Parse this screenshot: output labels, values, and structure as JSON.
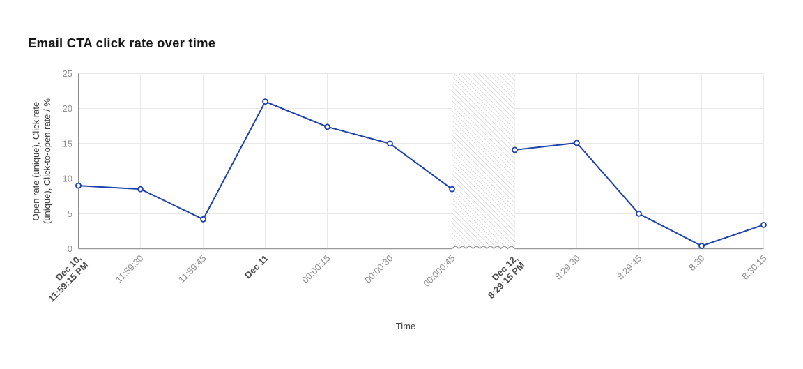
{
  "page_title": "Email CTA click rate over time",
  "chart_data": {
    "type": "line",
    "title": "Email CTA click rate over time",
    "xlabel": "Time",
    "ylabel": "Open rate (unique), Click rate (unique), Click-to-open rate / %",
    "ylabel_lines": [
      "Open rate (unique), Click rate",
      "(unique), Click-to-open rate / %"
    ],
    "ylim": [
      0,
      25
    ],
    "yticks": [
      0,
      5,
      10,
      15,
      20,
      25
    ],
    "grid": true,
    "legend": "none",
    "x_ticks": [
      {
        "lines": [
          "Dec 10,",
          "11:59:15 PM"
        ],
        "bold": true
      },
      {
        "lines": [
          "11:59:30"
        ],
        "bold": false
      },
      {
        "lines": [
          "11:59:45"
        ],
        "bold": false
      },
      {
        "lines": [
          "Dec 11"
        ],
        "bold": true
      },
      {
        "lines": [
          "00:00:15"
        ],
        "bold": false
      },
      {
        "lines": [
          "00:00:30"
        ],
        "bold": false
      },
      {
        "lines": [
          "00:000:45"
        ],
        "bold": false
      },
      {
        "lines": [
          "Dec 12,",
          "8:29:15 PM"
        ],
        "bold": true
      },
      {
        "lines": [
          "8:29:30"
        ],
        "bold": false
      },
      {
        "lines": [
          "8:29:45"
        ],
        "bold": false
      },
      {
        "lines": [
          "8:30"
        ],
        "bold": false
      },
      {
        "lines": [
          "8:30:15"
        ],
        "bold": false
      }
    ],
    "values": [
      9,
      8.5,
      4.2,
      21,
      17.4,
      15,
      8.5,
      14.1,
      15.1,
      5,
      0.4,
      3.4
    ],
    "time_break": {
      "from_tick_index": 6,
      "to_tick_index": 7,
      "style": "hatched-band-with-wavy-axis"
    },
    "colors": {
      "line": "#1c40ac",
      "marker_fill": "#ffffff",
      "grid": "#e8e8e8",
      "axis": "#9a9a9a",
      "axis_left": "#8d8d8d",
      "hatch": "#dcdcdc",
      "tick_label": "#8a8a8a",
      "tick_label_bold": "#4a4a4a",
      "axis_title": "#3d3d3d",
      "title": "#161616"
    }
  }
}
